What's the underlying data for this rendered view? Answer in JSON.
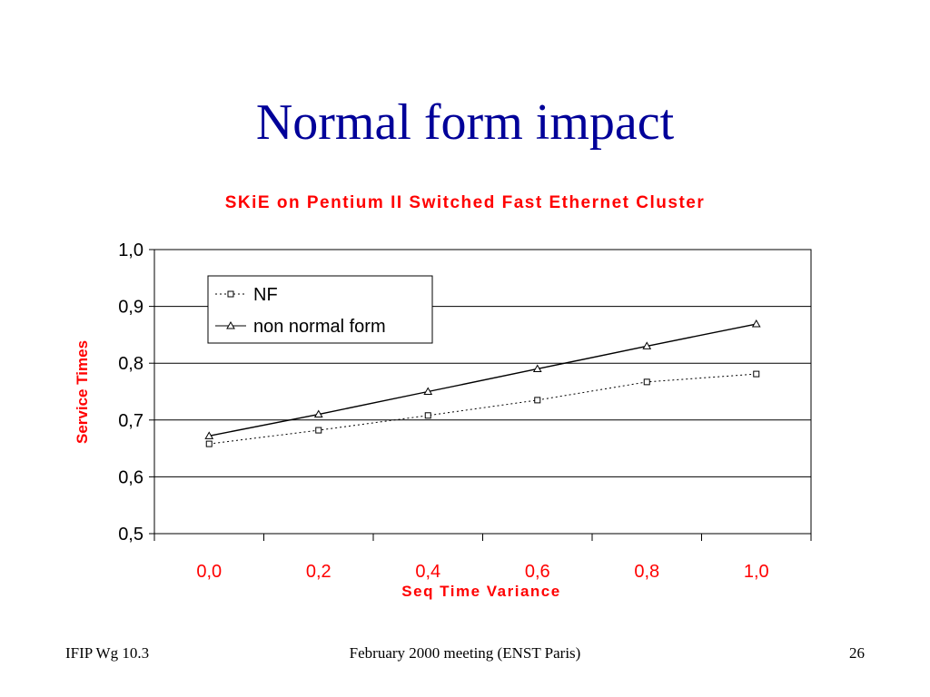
{
  "slide": {
    "title": "Normal form impact"
  },
  "footer": {
    "left": "IFIP Wg 10.3",
    "center": "February 2000 meeting (ENST Paris)",
    "page_number": "26"
  },
  "chart_data": {
    "type": "line",
    "title": "SKiE on Pentium II Switched Fast Ethernet Cluster",
    "xlabel": "Seq Time Variance",
    "ylabel": "Service Times",
    "categories": [
      "0,0",
      "0,2",
      "0,4",
      "0,6",
      "0,8",
      "1,0"
    ],
    "x": [
      0.0,
      0.2,
      0.4,
      0.6,
      0.8,
      1.0
    ],
    "ylim": [
      0.5,
      1.0
    ],
    "yticks": [
      "0,5",
      "0,6",
      "0,7",
      "0,8",
      "0,9",
      "1,0"
    ],
    "ytick_values": [
      0.5,
      0.6,
      0.7,
      0.8,
      0.9,
      1.0
    ],
    "grid": "horizontal",
    "legend_position": "top-left",
    "series": [
      {
        "name": "NF",
        "values": [
          0.658,
          0.682,
          0.708,
          0.735,
          0.767,
          0.781
        ],
        "line": "dotted",
        "marker": "square"
      },
      {
        "name": "non normal form",
        "values": [
          0.672,
          0.71,
          0.75,
          0.79,
          0.83,
          0.869
        ],
        "line": "solid",
        "marker": "triangle"
      }
    ],
    "colors": {
      "title": "#ff0000",
      "axis_labels": "#ff0000",
      "x_tick_labels": "#ff0000",
      "y_tick_labels": "#000000",
      "lines": "#000000"
    }
  }
}
